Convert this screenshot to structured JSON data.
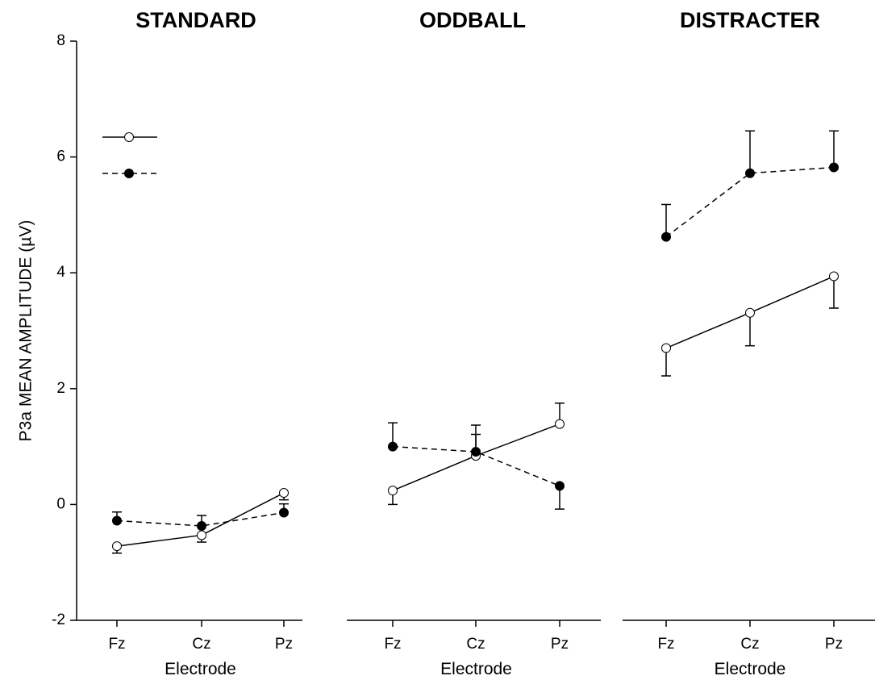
{
  "chart_data": {
    "type": "line",
    "ylabel": "P3a MEAN AMPLITUDE (µV)",
    "ylim": [
      -2,
      8
    ],
    "yticks": [
      "-2",
      "0",
      "2",
      "4",
      "6",
      "8"
    ],
    "grid": false,
    "legend": {
      "placement": "top-left",
      "entries": [
        {
          "series": "open",
          "marker": "open-circle",
          "line": "solid"
        },
        {
          "series": "filled",
          "marker": "filled-circle",
          "line": "dashed"
        }
      ]
    },
    "categories": [
      "Fz",
      "Cz",
      "Pz"
    ],
    "panels": [
      {
        "title": "STANDARD",
        "xlabel": "Electrode",
        "series": [
          {
            "key": "open",
            "values": [
              -0.72,
              -0.53,
              0.2
            ],
            "error": [
              0.12,
              0.12,
              0.12
            ],
            "error_dir": "down"
          },
          {
            "key": "filled",
            "values": [
              -0.28,
              -0.37,
              -0.14
            ],
            "error": [
              0.15,
              0.18,
              0.15
            ],
            "error_dir": "up"
          }
        ]
      },
      {
        "title": "ODDBALL",
        "xlabel": "Electrode",
        "series": [
          {
            "key": "open",
            "values": [
              0.24,
              0.84,
              1.39
            ],
            "error": [
              0.24,
              0.37,
              0.36
            ],
            "error_dir": "down_up"
          },
          {
            "key": "filled",
            "values": [
              1.0,
              0.91,
              0.32
            ],
            "error": [
              0.41,
              0.46,
              0.4
            ],
            "error_dir": "up_down"
          }
        ]
      },
      {
        "title": "DISTRACTER",
        "xlabel": "Electrode",
        "series": [
          {
            "key": "open",
            "values": [
              2.7,
              3.31,
              3.94
            ],
            "error": [
              0.48,
              0.57,
              0.55
            ],
            "error_dir": "down"
          },
          {
            "key": "filled",
            "values": [
              4.62,
              5.72,
              5.82
            ],
            "error": [
              0.56,
              0.73,
              0.63
            ],
            "error_dir": "up"
          }
        ]
      }
    ]
  }
}
